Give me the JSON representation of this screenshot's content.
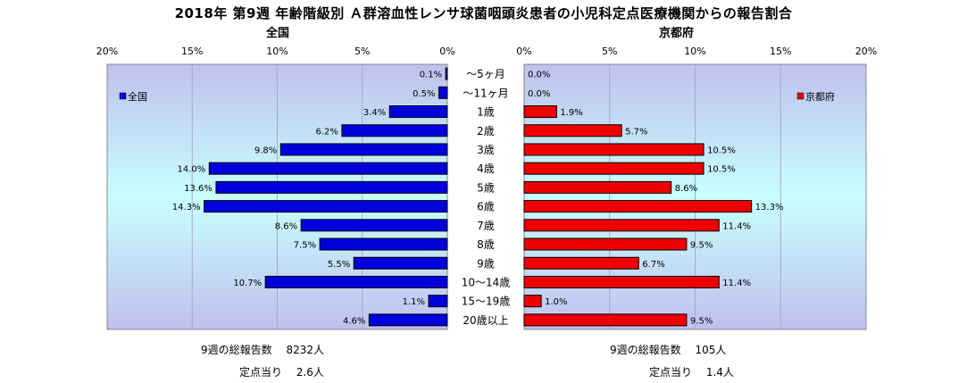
{
  "title": "2018年 第9週 年齢階級別 Ａ群溶血性レンサ球菌咽頭炎患者の小児科定点医療機関からの報告割合",
  "colors": {
    "national_bar": "#0000dd",
    "kyoto_bar": "#ee0000",
    "plot_bg_top": "#c0c0ee",
    "plot_bg_mid": "#c8ffff"
  },
  "chart_data": [
    {
      "type": "bar",
      "orientation": "horizontal",
      "title": "全国",
      "categories": [
        "～5ヶ月",
        "～11ヶ月",
        "1歳",
        "2歳",
        "3歳",
        "4歳",
        "5歳",
        "6歳",
        "7歳",
        "8歳",
        "9歳",
        "10～14歳",
        "15～19歳",
        "20歳以上"
      ],
      "series": [
        {
          "name": "全国",
          "values": [
            0.1,
            0.5,
            3.4,
            6.2,
            9.8,
            14.0,
            13.6,
            14.3,
            8.6,
            7.5,
            5.5,
            10.7,
            1.1,
            4.6
          ],
          "labels": [
            "0.1%",
            "0.5%",
            "3.4%",
            "6.2%",
            "9.8%",
            "14.0%",
            "13.6%",
            "14.3%",
            "8.6%",
            "7.5%",
            "5.5%",
            "10.7%",
            "1.1%",
            "4.6%"
          ]
        }
      ],
      "x_ticks": [
        "20%",
        "15%",
        "10%",
        "5%",
        "0%"
      ],
      "xlim": [
        0,
        20
      ],
      "x_reversed": true,
      "legend": "left",
      "grid": true
    },
    {
      "type": "bar",
      "orientation": "horizontal",
      "title": "京都府",
      "categories": [
        "～5ヶ月",
        "～11ヶ月",
        "1歳",
        "2歳",
        "3歳",
        "4歳",
        "5歳",
        "6歳",
        "7歳",
        "8歳",
        "9歳",
        "10～14歳",
        "15～19歳",
        "20歳以上"
      ],
      "series": [
        {
          "name": "京都府",
          "values": [
            0.0,
            0.0,
            1.9,
            5.7,
            10.5,
            10.5,
            8.6,
            13.3,
            11.4,
            9.5,
            6.7,
            11.4,
            1.0,
            9.5
          ],
          "labels": [
            "0.0%",
            "0.0%",
            "1.9%",
            "5.7%",
            "10.5%",
            "10.5%",
            "8.6%",
            "13.3%",
            "11.4%",
            "9.5%",
            "6.7%",
            "11.4%",
            "1.0%",
            "9.5%"
          ]
        }
      ],
      "x_ticks": [
        "0%",
        "5%",
        "10%",
        "15%",
        "20%"
      ],
      "xlim": [
        0,
        20
      ],
      "legend": "right",
      "grid": true
    }
  ],
  "footer": {
    "national_total": "9週の総報告数　 8232人",
    "national_per_site": "定点当り　 2.6人",
    "kyoto_total": "9週の総報告数　 105人",
    "kyoto_per_site": "定点当り　 1.4人"
  }
}
